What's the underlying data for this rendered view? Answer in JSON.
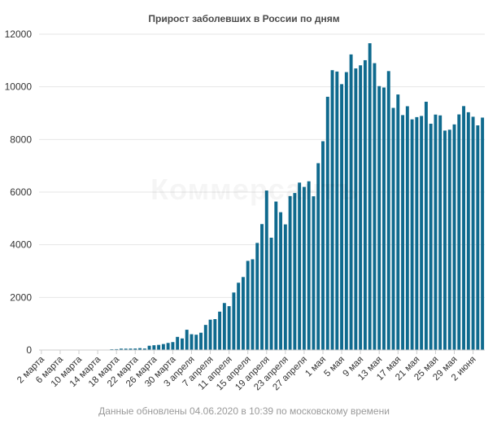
{
  "chart_data": {
    "type": "bar",
    "title": "Прирост заболевших в России по дням",
    "xlabel": "",
    "ylabel": "",
    "ylim": [
      0,
      12000
    ],
    "yticks": [
      0,
      2000,
      4000,
      6000,
      8000,
      10000,
      12000
    ],
    "grid": "horizontal",
    "legend": "none",
    "bar_color": "#0f6a8e",
    "x_tick_labels": [
      "2 марта",
      "6 марта",
      "10 марта",
      "14 марта",
      "18 марта",
      "22 марта",
      "26 марта",
      "30 марта",
      "3 апреля",
      "7 апреля",
      "11 апреля",
      "15 апреля",
      "19 апреля",
      "23 апреля",
      "27 апреля",
      "1 мая",
      "5 мая",
      "9 мая",
      "13 мая",
      "17 мая",
      "21 мая",
      "25 мая",
      "29 мая",
      "2 июня"
    ],
    "tick_every": 4,
    "start_date": "2 марта",
    "values": [
      3,
      0,
      1,
      1,
      2,
      1,
      3,
      3,
      0,
      6,
      8,
      6,
      14,
      6,
      14,
      30,
      33,
      53,
      52,
      54,
      57,
      71,
      57,
      163,
      182,
      196,
      228,
      270,
      302,
      500,
      440,
      771,
      601,
      582,
      658,
      954,
      1154,
      1175,
      1459,
      1786,
      1667,
      2186,
      2558,
      2774,
      3388,
      3448,
      4070,
      4785,
      6060,
      4268,
      5642,
      5236,
      4774,
      5849,
      5966,
      6361,
      6198,
      6411,
      5841,
      7099,
      7933,
      9623,
      10633,
      10581,
      10102,
      10559,
      11231,
      10699,
      10817,
      11012,
      11656,
      10899,
      10028,
      9974,
      10598,
      9200,
      9709,
      8926,
      9263,
      8764,
      8849,
      8894,
      9434,
      8599,
      8946,
      8915,
      8338,
      8371,
      8572,
      8952,
      9268,
      9035,
      8863,
      8536,
      8831
    ]
  },
  "watermark": "Коммерсантъ",
  "footer": "Данные обновлены 04.06.2020 в 10:39 по московскому времени"
}
